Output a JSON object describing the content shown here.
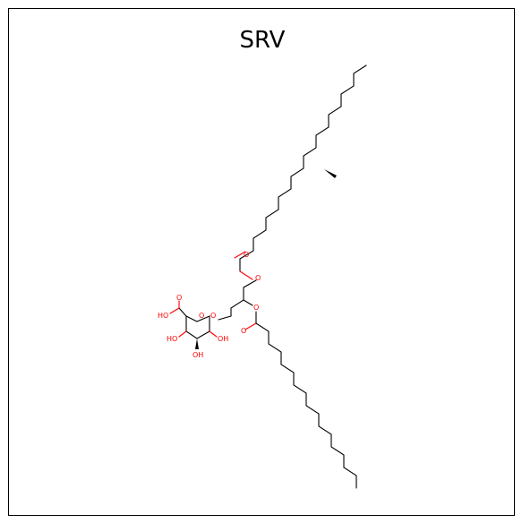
{
  "title": "SRV",
  "atoms": {
    "o_ester1": "O",
    "o_carbonyl1": "O",
    "o_ester2": "O",
    "o_carbonyl2": "O",
    "o_glyco": "O",
    "o_ring": "O",
    "o_acid_dbl": "O",
    "oh_acid": "HO",
    "oh_2": "HO",
    "oh_3": "OH",
    "oh_4": "OH"
  },
  "colors": {
    "heteroatom": "#ff0000",
    "bond": "#000000",
    "frame": "#000000"
  }
}
